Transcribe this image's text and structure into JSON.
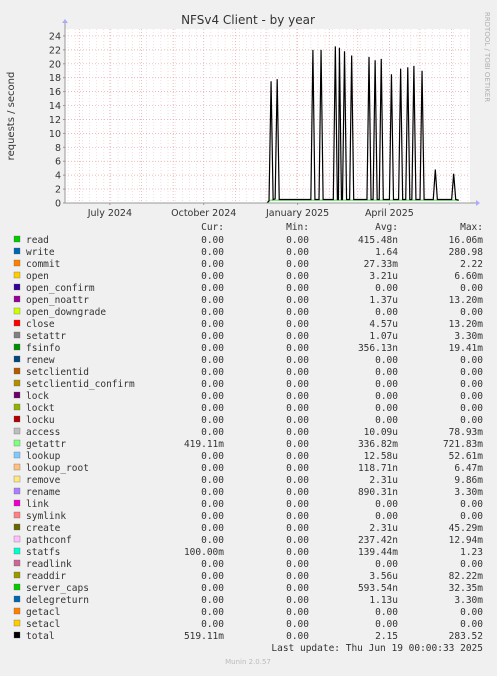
{
  "chart_data": {
    "type": "line",
    "title": "NFSv4 Client - by year",
    "ylabel": "requests / second",
    "side_label": "RRDTOOL / TOBI OETIKER",
    "ylim": [
      0,
      25
    ],
    "yticks": [
      0,
      2,
      4,
      6,
      8,
      10,
      12,
      14,
      16,
      18,
      20,
      22,
      24
    ],
    "xlim": [
      "2024-05-18",
      "2025-06-19"
    ],
    "x_tick_labels": [
      {
        "date": "2024-07-01",
        "label": "July 2024"
      },
      {
        "date": "2024-10-01",
        "label": "October 2024"
      },
      {
        "date": "2025-01-01",
        "label": "January 2025"
      },
      {
        "date": "2025-04-01",
        "label": "April 2025"
      }
    ],
    "grid": true,
    "series": [
      {
        "name": "total",
        "color": "#000000",
        "points": [
          [
            "2024-12-02",
            0.0
          ],
          [
            "2024-12-04",
            0.3
          ],
          [
            "2024-12-06",
            17.5
          ],
          [
            "2024-12-08",
            0.5
          ],
          [
            "2024-12-10",
            0.6
          ],
          [
            "2024-12-12",
            17.8
          ],
          [
            "2024-12-14",
            0.5
          ],
          [
            "2024-12-18",
            0.5
          ],
          [
            "2025-01-10",
            0.5
          ],
          [
            "2025-01-14",
            0.5
          ],
          [
            "2025-01-16",
            22.0
          ],
          [
            "2025-01-18",
            0.5
          ],
          [
            "2025-01-22",
            0.5
          ],
          [
            "2025-01-24",
            22.0
          ],
          [
            "2025-01-26",
            0.5
          ],
          [
            "2025-02-05",
            0.5
          ],
          [
            "2025-02-07",
            22.5
          ],
          [
            "2025-02-09",
            0.5
          ],
          [
            "2025-02-10",
            0.5
          ],
          [
            "2025-02-11",
            22.3
          ],
          [
            "2025-02-13",
            0.5
          ],
          [
            "2025-02-14",
            0.5
          ],
          [
            "2025-02-16",
            21.8
          ],
          [
            "2025-02-18",
            0.5
          ],
          [
            "2025-02-21",
            0.5
          ],
          [
            "2025-02-23",
            21.2
          ],
          [
            "2025-02-25",
            0.5
          ],
          [
            "2025-03-10",
            0.5
          ],
          [
            "2025-03-12",
            21.0
          ],
          [
            "2025-03-14",
            0.5
          ],
          [
            "2025-03-16",
            0.5
          ],
          [
            "2025-03-18",
            20.5
          ],
          [
            "2025-03-20",
            0.5
          ],
          [
            "2025-03-22",
            0.5
          ],
          [
            "2025-03-24",
            20.7
          ],
          [
            "2025-03-26",
            0.5
          ],
          [
            "2025-04-01",
            0.5
          ],
          [
            "2025-04-03",
            18.5
          ],
          [
            "2025-04-05",
            0.5
          ],
          [
            "2025-04-10",
            0.5
          ],
          [
            "2025-04-12",
            19.3
          ],
          [
            "2025-04-14",
            0.5
          ],
          [
            "2025-04-17",
            0.5
          ],
          [
            "2025-04-19",
            19.5
          ],
          [
            "2025-04-21",
            0.5
          ],
          [
            "2025-04-23",
            0.5
          ],
          [
            "2025-04-25",
            19.7
          ],
          [
            "2025-04-27",
            0.5
          ],
          [
            "2025-05-01",
            0.5
          ],
          [
            "2025-05-03",
            19.0
          ],
          [
            "2025-05-05",
            0.5
          ],
          [
            "2025-05-14",
            0.5
          ],
          [
            "2025-05-16",
            4.8
          ],
          [
            "2025-05-18",
            0.5
          ],
          [
            "2025-06-01",
            0.5
          ],
          [
            "2025-06-03",
            4.2
          ],
          [
            "2025-06-05",
            0.5
          ],
          [
            "2025-06-08",
            0.4
          ]
        ]
      },
      {
        "name": "getattr",
        "color": "#7eee7e",
        "points": [
          [
            "2024-12-02",
            0.0
          ],
          [
            "2024-12-04",
            0.3
          ],
          [
            "2024-12-06",
            0.4
          ],
          [
            "2024-12-18",
            0.4
          ],
          [
            "2025-06-08",
            0.4
          ]
        ]
      }
    ]
  },
  "legend": {
    "headers": {
      "cur": "Cur:",
      "min": "Min:",
      "avg": "Avg:",
      "max": "Max:"
    },
    "rows": [
      {
        "name": "read",
        "color": "#00cc00",
        "cur": "0.00",
        "min": "0.00",
        "avg": "415.48n",
        "max": "16.06m"
      },
      {
        "name": "write",
        "color": "#0066b3",
        "cur": "0.00",
        "min": "0.00",
        "avg": "1.64",
        "max": "280.98"
      },
      {
        "name": "commit",
        "color": "#ff8000",
        "cur": "0.00",
        "min": "0.00",
        "avg": "27.33m",
        "max": "2.22"
      },
      {
        "name": "open",
        "color": "#ffcc00",
        "cur": "0.00",
        "min": "0.00",
        "avg": "3.21u",
        "max": "6.60m"
      },
      {
        "name": "open_confirm",
        "color": "#330099",
        "cur": "0.00",
        "min": "0.00",
        "avg": "0.00",
        "max": "0.00"
      },
      {
        "name": "open_noattr",
        "color": "#990099",
        "cur": "0.00",
        "min": "0.00",
        "avg": "1.37u",
        "max": "13.20m"
      },
      {
        "name": "open_downgrade",
        "color": "#ccff00",
        "cur": "0.00",
        "min": "0.00",
        "avg": "0.00",
        "max": "0.00"
      },
      {
        "name": "close",
        "color": "#ff0000",
        "cur": "0.00",
        "min": "0.00",
        "avg": "4.57u",
        "max": "13.20m"
      },
      {
        "name": "setattr",
        "color": "#808080",
        "cur": "0.00",
        "min": "0.00",
        "avg": "1.07u",
        "max": "3.30m"
      },
      {
        "name": "fsinfo",
        "color": "#008f00",
        "cur": "0.00",
        "min": "0.00",
        "avg": "356.13n",
        "max": "19.41m"
      },
      {
        "name": "renew",
        "color": "#00487d",
        "cur": "0.00",
        "min": "0.00",
        "avg": "0.00",
        "max": "0.00"
      },
      {
        "name": "setclientid",
        "color": "#b35a00",
        "cur": "0.00",
        "min": "0.00",
        "avg": "0.00",
        "max": "0.00"
      },
      {
        "name": "setclientid_confirm",
        "color": "#b38f00",
        "cur": "0.00",
        "min": "0.00",
        "avg": "0.00",
        "max": "0.00"
      },
      {
        "name": "lock",
        "color": "#6b006b",
        "cur": "0.00",
        "min": "0.00",
        "avg": "0.00",
        "max": "0.00"
      },
      {
        "name": "lockt",
        "color": "#8fb300",
        "cur": "0.00",
        "min": "0.00",
        "avg": "0.00",
        "max": "0.00"
      },
      {
        "name": "locku",
        "color": "#b30000",
        "cur": "0.00",
        "min": "0.00",
        "avg": "0.00",
        "max": "0.00"
      },
      {
        "name": "access",
        "color": "#bebebe",
        "cur": "0.00",
        "min": "0.00",
        "avg": "10.09u",
        "max": "78.93m"
      },
      {
        "name": "getattr",
        "color": "#80ff80",
        "cur": "419.11m",
        "min": "0.00",
        "avg": "336.82m",
        "max": "721.83m"
      },
      {
        "name": "lookup",
        "color": "#80c9ff",
        "cur": "0.00",
        "min": "0.00",
        "avg": "12.58u",
        "max": "52.61m"
      },
      {
        "name": "lookup_root",
        "color": "#ffc080",
        "cur": "0.00",
        "min": "0.00",
        "avg": "118.71n",
        "max": "6.47m"
      },
      {
        "name": "remove",
        "color": "#ffe680",
        "cur": "0.00",
        "min": "0.00",
        "avg": "2.31u",
        "max": "9.86m"
      },
      {
        "name": "rename",
        "color": "#aa80ff",
        "cur": "0.00",
        "min": "0.00",
        "avg": "890.31n",
        "max": "3.30m"
      },
      {
        "name": "link",
        "color": "#ee00cc",
        "cur": "0.00",
        "min": "0.00",
        "avg": "0.00",
        "max": "0.00"
      },
      {
        "name": "symlink",
        "color": "#ff8080",
        "cur": "0.00",
        "min": "0.00",
        "avg": "0.00",
        "max": "0.00"
      },
      {
        "name": "create",
        "color": "#666600",
        "cur": "0.00",
        "min": "0.00",
        "avg": "2.31u",
        "max": "45.29m"
      },
      {
        "name": "pathconf",
        "color": "#ffbfff",
        "cur": "0.00",
        "min": "0.00",
        "avg": "237.42n",
        "max": "12.94m"
      },
      {
        "name": "statfs",
        "color": "#00ffcc",
        "cur": "100.00m",
        "min": "0.00",
        "avg": "139.44m",
        "max": "1.23"
      },
      {
        "name": "readlink",
        "color": "#cc6699",
        "cur": "0.00",
        "min": "0.00",
        "avg": "0.00",
        "max": "0.00"
      },
      {
        "name": "readdir",
        "color": "#999900",
        "cur": "0.00",
        "min": "0.00",
        "avg": "3.56u",
        "max": "82.22m"
      },
      {
        "name": "server_caps",
        "color": "#00cc00",
        "cur": "0.00",
        "min": "0.00",
        "avg": "593.54n",
        "max": "32.35m"
      },
      {
        "name": "delegreturn",
        "color": "#0066b3",
        "cur": "0.00",
        "min": "0.00",
        "avg": "1.13u",
        "max": "3.30m"
      },
      {
        "name": "getacl",
        "color": "#ff8000",
        "cur": "0.00",
        "min": "0.00",
        "avg": "0.00",
        "max": "0.00"
      },
      {
        "name": "setacl",
        "color": "#ffcc00",
        "cur": "0.00",
        "min": "0.00",
        "avg": "0.00",
        "max": "0.00"
      },
      {
        "name": "total",
        "color": "#000000",
        "cur": "519.11m",
        "min": "0.00",
        "avg": "2.15",
        "max": "283.52"
      }
    ]
  },
  "footer": {
    "last_update": "Last update: Thu Jun 19 00:00:33 2025",
    "version": "Munin 2.0.57"
  }
}
